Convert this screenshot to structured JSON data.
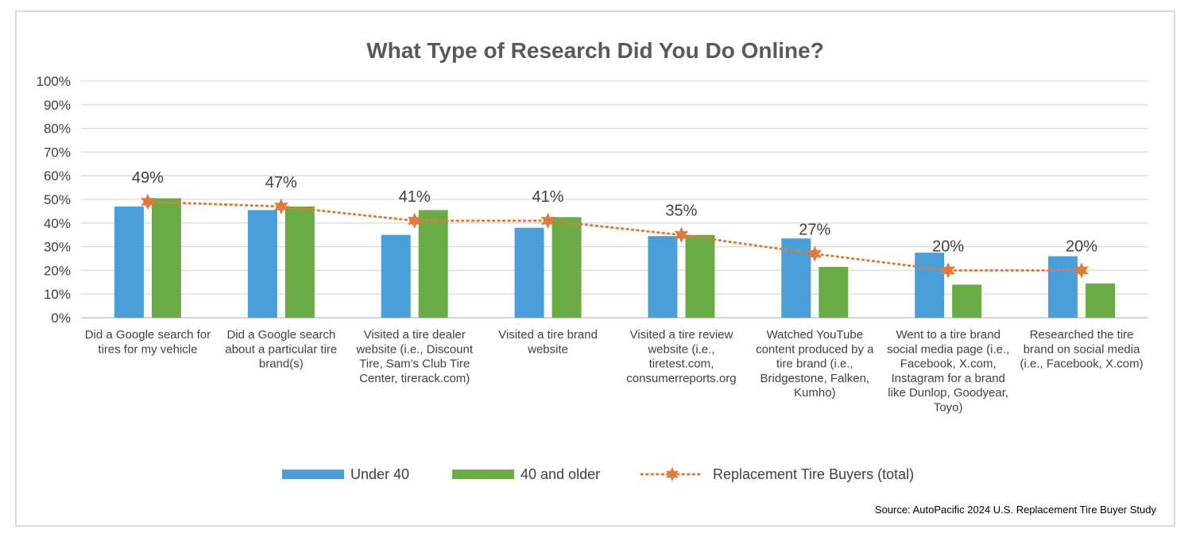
{
  "chart_data": {
    "type": "bar",
    "title": "What Type of Research Did You Do Online?",
    "xlabel": "",
    "ylabel": "",
    "ylim": [
      0,
      100
    ],
    "yticks": [
      "0%",
      "10%",
      "20%",
      "30%",
      "40%",
      "50%",
      "60%",
      "70%",
      "80%",
      "90%",
      "100%"
    ],
    "grid": true,
    "legend_position": "bottom",
    "categories": [
      [
        "Did a Google search for",
        "tires for my vehicle"
      ],
      [
        "Did a Google search",
        "about a particular tire",
        "brand(s)"
      ],
      [
        "Visited a tire dealer",
        "website (i.e., Discount",
        "Tire, Sam's Club Tire",
        "Center, tirerack.com)"
      ],
      [
        "Visited a tire brand",
        "website"
      ],
      [
        "Visited a tire review",
        "website (i.e.,",
        "tiretest.com,",
        "consumerreports.org"
      ],
      [
        "Watched YouTube",
        "content produced by a",
        "tire brand (i.e.,",
        "Bridgestone, Falken,",
        "Kumho)"
      ],
      [
        "Went to a tire brand",
        "social media page (i.e.,",
        "Facebook, X.com,",
        "Instagram for a brand",
        "like Dunlop, Goodyear,",
        "Toyo)"
      ],
      [
        "Researched the tire",
        "brand on social media",
        "(i.e., Facebook, X.com)"
      ]
    ],
    "series": [
      {
        "name": "Under 40",
        "kind": "bar",
        "color": "#4a9fd8",
        "values": [
          47,
          45.5,
          35,
          38,
          34.5,
          33.5,
          27.5,
          26
        ]
      },
      {
        "name": "40 and older",
        "kind": "bar",
        "color": "#6aab45",
        "values": [
          50.5,
          47,
          45.5,
          42.5,
          35,
          21.5,
          14,
          14.5
        ]
      },
      {
        "name": "Replacement Tire Buyers (total)",
        "kind": "line",
        "style": "dotted",
        "marker": "star",
        "color": "#e07b39",
        "values": [
          49,
          47,
          41,
          41,
          35,
          27,
          20,
          20
        ],
        "labels": [
          "49%",
          "47%",
          "41%",
          "41%",
          "35%",
          "27%",
          "20%",
          "20%"
        ]
      }
    ]
  },
  "source": "Source: AutoPacific 2024 U.S. Replacement Tire Buyer Study"
}
